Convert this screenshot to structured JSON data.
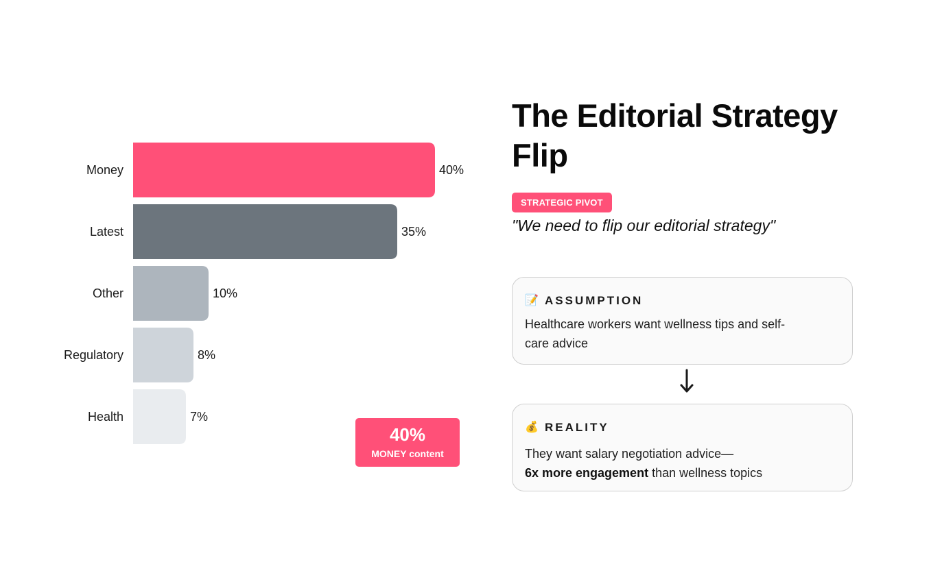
{
  "chart_data": {
    "type": "bar",
    "orientation": "horizontal",
    "categories": [
      "Money",
      "Latest",
      "Other",
      "Regulatory",
      "Health"
    ],
    "values": [
      40,
      35,
      10,
      8,
      7
    ],
    "value_labels": [
      "40%",
      "35%",
      "10%",
      "8%",
      "7%"
    ],
    "unit": "%",
    "bar_colors": [
      "#ff5078",
      "#6c757d",
      "#adb5bd",
      "#ced4da",
      "#e9ecef"
    ],
    "xlim": [
      0,
      40
    ],
    "grid": false,
    "callout": {
      "value": "40%",
      "caption": "MONEY content",
      "color": "#ff5078"
    }
  },
  "panel": {
    "title": "The Editorial Strategy Flip",
    "badge": "STRATEGIC PIVOT",
    "badge_color": "#ff5078",
    "quote": "\"We need to flip our editorial strategy\"",
    "assumption": {
      "icon": "📝",
      "icon_name": "memo-icon",
      "title": "ASSUMPTION",
      "body": "Healthcare workers want wellness tips and self-care advice"
    },
    "arrow_icon": "↓",
    "reality": {
      "icon": "💰",
      "icon_name": "money-bag-icon",
      "title": "REALITY",
      "body_intro": "They want salary negotiation advice—",
      "body_emphasis": "6x more engagement",
      "body_rest": " than wellness topics"
    }
  }
}
